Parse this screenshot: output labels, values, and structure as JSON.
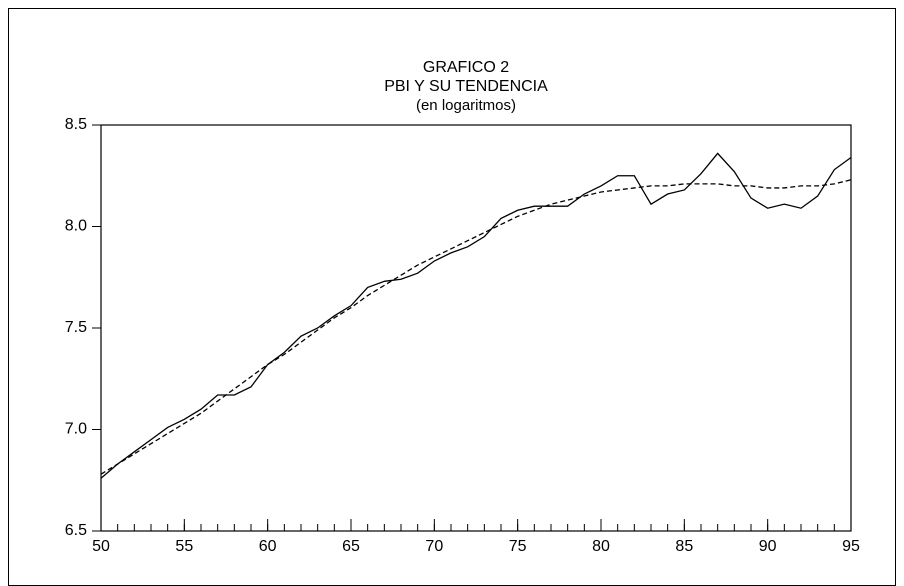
{
  "chart_data": {
    "type": "line",
    "title": [
      "GRAFICO 2",
      "PBI Y SU TENDENCIA",
      "(en logaritmos)"
    ],
    "x": [
      50,
      51,
      52,
      53,
      54,
      55,
      56,
      57,
      58,
      59,
      60,
      61,
      62,
      63,
      64,
      65,
      66,
      67,
      68,
      69,
      70,
      71,
      72,
      73,
      74,
      75,
      76,
      77,
      78,
      79,
      80,
      81,
      82,
      83,
      84,
      85,
      86,
      87,
      88,
      89,
      90,
      91,
      92,
      93,
      94,
      95
    ],
    "series": [
      {
        "color": "#000000",
        "dash": "solid",
        "values": [
          6.76,
          6.83,
          6.89,
          6.95,
          7.01,
          7.05,
          7.1,
          7.17,
          7.17,
          7.21,
          7.32,
          7.38,
          7.46,
          7.5,
          7.56,
          7.61,
          7.7,
          7.73,
          7.74,
          7.77,
          7.83,
          7.87,
          7.9,
          7.95,
          8.04,
          8.08,
          8.1,
          8.1,
          8.1,
          8.16,
          8.2,
          8.25,
          8.25,
          8.11,
          8.16,
          8.18,
          8.26,
          8.36,
          8.27,
          8.14,
          8.09,
          8.11,
          8.09,
          8.15,
          8.28,
          8.34
        ]
      },
      {
        "color": "#000000",
        "dash": "dashed",
        "values": [
          6.78,
          6.83,
          6.88,
          6.93,
          6.98,
          7.03,
          7.08,
          7.14,
          7.2,
          7.26,
          7.32,
          7.37,
          7.43,
          7.49,
          7.55,
          7.6,
          7.66,
          7.71,
          7.76,
          7.81,
          7.85,
          7.89,
          7.93,
          7.97,
          8.01,
          8.05,
          8.08,
          8.11,
          8.13,
          8.15,
          8.17,
          8.18,
          8.19,
          8.2,
          8.2,
          8.21,
          8.21,
          8.21,
          8.2,
          8.2,
          8.19,
          8.19,
          8.2,
          8.2,
          8.21,
          8.23
        ]
      }
    ],
    "xlim": [
      50,
      95
    ],
    "xticks": [
      50,
      55,
      60,
      65,
      70,
      75,
      80,
      85,
      90,
      95
    ],
    "ylim": [
      6.5,
      8.5
    ],
    "yticks": [
      6.5,
      {
        "value": 7,
        "label": "7.0"
      },
      7.5,
      {
        "value": 8,
        "label": "8.0"
      },
      8.5
    ],
    "grid": false
  }
}
